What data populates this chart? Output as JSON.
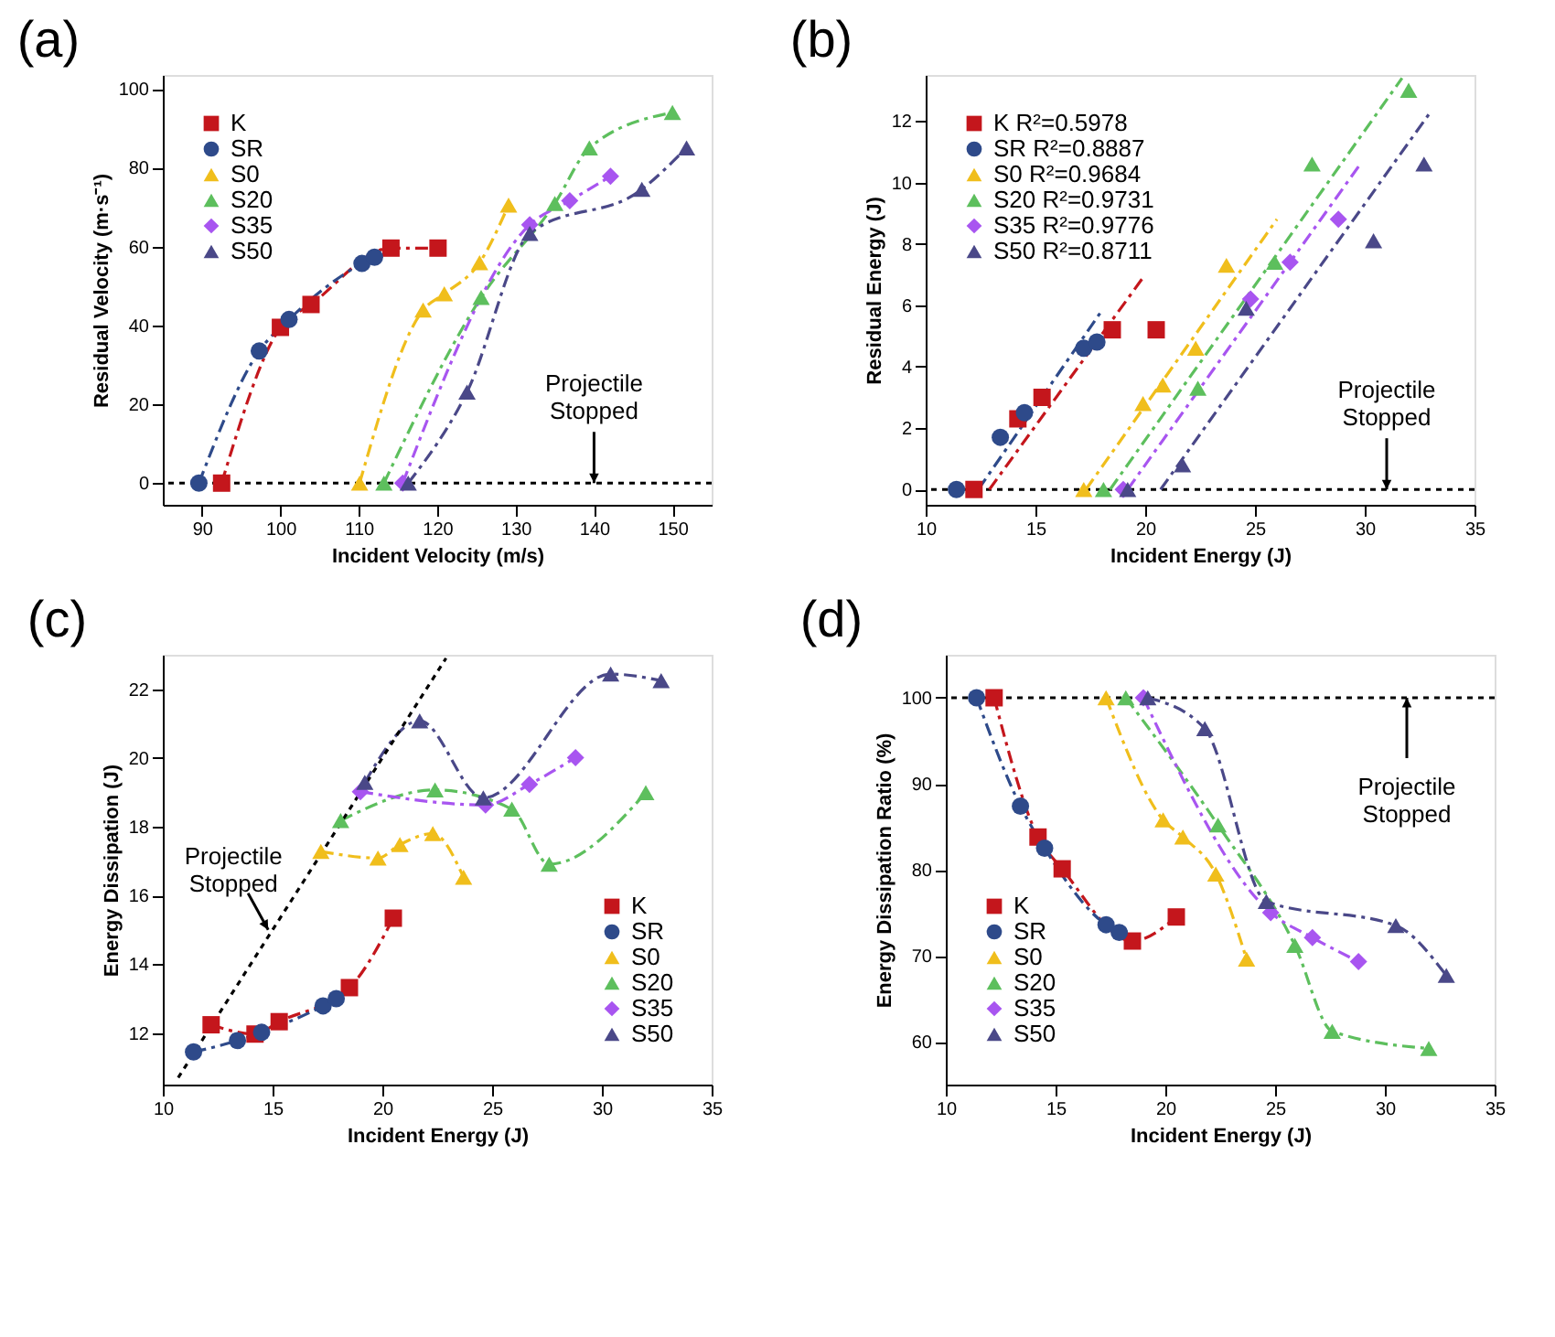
{
  "chart_data": [
    {
      "type": "line",
      "title": "(a)",
      "xlabel": "Incident Velocity (m/s)",
      "ylabel": "Residual Velocity (m·s⁻¹)",
      "xlim": [
        85,
        155
      ],
      "ylim": [
        -5.5,
        103.5
      ],
      "xticks": [
        90,
        100,
        110,
        120,
        130,
        140,
        150
      ],
      "yticks": [
        0,
        20,
        40,
        60,
        80,
        100
      ],
      "grid": false,
      "legend": "top left",
      "line_style": "dashed",
      "series": [
        {
          "name": "K",
          "color": "#c4161c",
          "marker": "square",
          "x": [
            92.5,
            100,
            103.9,
            114.1,
            120.1
          ],
          "values": [
            0,
            39.5,
            45.3,
            59.6,
            59.6
          ]
        },
        {
          "name": "SR",
          "color": "#2e4a8a",
          "marker": "circle",
          "x": [
            89.6,
            97.3,
            101.1,
            110.4,
            112
          ],
          "values": [
            0,
            33.5,
            41.5,
            55.7,
            57.3
          ]
        },
        {
          "name": "S0",
          "color": "#f0be1c",
          "marker": "triangle",
          "x": [
            110.1,
            118.2,
            120.9,
            125.4,
            129.1
          ],
          "values": [
            0,
            43.9,
            48,
            55.9,
            70.5
          ]
        },
        {
          "name": "S20",
          "color": "#5dbf5d",
          "marker": "triangle",
          "x": [
            113.2,
            125.6,
            135,
            139.4,
            150
          ],
          "values": [
            0,
            47.1,
            70.9,
            85,
            94
          ]
        },
        {
          "name": "S35",
          "color": "#a855f0",
          "marker": "diamond",
          "x": [
            115.6,
            131.8,
            136.9,
            142.1
          ],
          "values": [
            0,
            65.5,
            71.6,
            77.8
          ]
        },
        {
          "name": "S50",
          "color": "#4a4888",
          "marker": "triangle",
          "x": [
            116.3,
            123.8,
            131.8,
            146.1,
            151.8
          ],
          "values": [
            0,
            23.1,
            63.3,
            74.5,
            85
          ]
        }
      ],
      "ref_lines": [
        {
          "axis": "y",
          "value": 0,
          "color": "#000000",
          "line_style": "dotted"
        }
      ],
      "annotations": [
        {
          "text": "Projectile Stopped",
          "x": 140,
          "y": 0
        }
      ]
    },
    {
      "type": "scatter",
      "title": "(b)",
      "xlabel": "Incident Energy (J)",
      "ylabel": "Residual Energy (J)",
      "xlim": [
        10,
        35
      ],
      "ylim": [
        -0.5,
        13.5
      ],
      "xticks": [
        10,
        15,
        20,
        25,
        30,
        35
      ],
      "yticks": [
        0,
        2,
        4,
        6,
        8,
        10,
        12
      ],
      "grid": false,
      "legend": "top left",
      "series": [
        {
          "name": "K R²=0.5978",
          "type": "scatter",
          "color": "#c4161c",
          "marker": "square",
          "x": [
            12.2,
            14.2,
            15.3,
            18.5,
            20.5
          ],
          "values": [
            0,
            2.3,
            3.0,
            5.2,
            5.2
          ]
        },
        {
          "name": "SR R²=0.8887",
          "type": "scatter",
          "color": "#2e4a8a",
          "marker": "circle",
          "x": [
            11.4,
            13.4,
            14.5,
            17.2,
            17.8
          ],
          "values": [
            0,
            1.7,
            2.5,
            4.6,
            4.8
          ]
        },
        {
          "name": "S0 R²=0.9684",
          "type": "scatter",
          "color": "#f0be1c",
          "marker": "triangle",
          "x": [
            17.2,
            19.9,
            20.8,
            22.3,
            23.7
          ],
          "values": [
            0,
            2.8,
            3.4,
            4.6,
            7.3
          ]
        },
        {
          "name": "S20 R²=0.9731",
          "type": "scatter",
          "color": "#5dbf5d",
          "marker": "triangle",
          "x": [
            18.1,
            22.4,
            25.9,
            27.6,
            32.0
          ],
          "values": [
            0,
            3.3,
            7.4,
            10.6,
            13.0
          ]
        },
        {
          "name": "S35 R²=0.9776",
          "type": "scatter",
          "color": "#a855f0",
          "marker": "diamond",
          "x": [
            19.0,
            24.8,
            26.6,
            28.8
          ],
          "values": [
            0,
            6.2,
            7.4,
            8.8
          ]
        },
        {
          "name": "S50 R²=0.8711",
          "type": "scatter",
          "color": "#4a4888",
          "marker": "triangle",
          "x": [
            19.2,
            21.7,
            24.6,
            30.4,
            32.7
          ],
          "values": [
            0,
            0.8,
            5.9,
            8.1,
            10.6
          ]
        },
        {
          "type": "line",
          "color": "#c4161c",
          "line_style": "dashed",
          "x": [
            12.9,
            19.9
          ],
          "values": [
            0,
            6.9
          ]
        },
        {
          "type": "line",
          "color": "#2e4a8a",
          "line_style": "dashed",
          "x": [
            12.4,
            18.0
          ],
          "values": [
            0,
            5.8
          ]
        },
        {
          "type": "line",
          "color": "#f0be1c",
          "line_style": "dashed",
          "x": [
            17.3,
            26.0
          ],
          "values": [
            0,
            8.8
          ]
        },
        {
          "type": "line",
          "color": "#5dbf5d",
          "line_style": "dashed",
          "x": [
            18.4,
            31.7
          ],
          "values": [
            0,
            13.4
          ]
        },
        {
          "type": "line",
          "color": "#a855f0",
          "line_style": "dashed",
          "x": [
            19.2,
            29.8
          ],
          "values": [
            0,
            10.6
          ]
        },
        {
          "type": "line",
          "color": "#4a4888",
          "line_style": "dashed",
          "x": [
            20.7,
            33.0
          ],
          "values": [
            0,
            12.3
          ]
        }
      ],
      "ref_lines": [
        {
          "axis": "y",
          "value": 0,
          "color": "#000000",
          "line_style": "dotted"
        }
      ],
      "annotations": [
        {
          "text": "Projectile Stopped",
          "x": 31,
          "y": 0
        }
      ]
    },
    {
      "type": "line",
      "title": "(c)",
      "xlabel": "Incident Energy (J)",
      "ylabel": "Energy Dissipation (J)",
      "xlim": [
        10,
        35
      ],
      "ylim": [
        10.5,
        23
      ],
      "xticks": [
        10,
        15,
        20,
        25,
        30,
        35
      ],
      "yticks": [
        12,
        14,
        16,
        18,
        20,
        22
      ],
      "grid": false,
      "legend": "bottom right",
      "line_style": "dashed",
      "series": [
        {
          "name": "K",
          "color": "#c4161c",
          "marker": "square",
          "x": [
            12.2,
            14.2,
            15.3,
            18.5,
            20.5
          ],
          "values": [
            12.24,
            11.97,
            12.33,
            13.32,
            15.34
          ]
        },
        {
          "name": "SR",
          "color": "#2e4a8a",
          "marker": "circle",
          "x": [
            11.4,
            13.4,
            14.5,
            17.3,
            17.9
          ],
          "values": [
            11.45,
            11.78,
            12.02,
            12.79,
            13.0
          ]
        },
        {
          "name": "S0",
          "color": "#f0be1c",
          "marker": "triangle",
          "x": [
            17.2,
            19.8,
            20.8,
            22.3,
            23.7
          ],
          "values": [
            17.28,
            17.09,
            17.48,
            17.8,
            16.53
          ]
        },
        {
          "name": "S20",
          "color": "#5dbf5d",
          "marker": "triangle",
          "x": [
            18.1,
            22.4,
            25.9,
            27.6,
            32.0
          ],
          "values": [
            18.18,
            19.07,
            18.51,
            16.91,
            18.99
          ]
        },
        {
          "name": "S35",
          "color": "#a855f0",
          "marker": "diamond",
          "x": [
            19.0,
            24.7,
            26.7,
            28.8
          ],
          "values": [
            19.02,
            18.63,
            19.23,
            20.01
          ]
        },
        {
          "name": "S50",
          "color": "#4a4888",
          "marker": "triangle",
          "x": [
            19.2,
            21.7,
            24.6,
            30.4,
            32.7
          ],
          "values": [
            19.29,
            21.08,
            18.84,
            22.44,
            22.25
          ]
        },
        {
          "type": "line",
          "color": "#000000",
          "marker": "none",
          "line_style": "dotted",
          "x": [
            10.7,
            22.9
          ],
          "values": [
            10.7,
            22.9
          ]
        }
      ],
      "annotations": [
        {
          "text": "Projectile Stopped",
          "x": 14.8,
          "y": 15.0
        }
      ]
    },
    {
      "type": "line",
      "title": "(d)",
      "xlabel": "Incident Energy (J)",
      "ylabel": "Energy Dissipation Ratio (%)",
      "xlim": [
        10,
        35
      ],
      "ylim": [
        55,
        105
      ],
      "xticks": [
        10,
        15,
        20,
        25,
        30,
        35
      ],
      "yticks": [
        60,
        70,
        80,
        90,
        100
      ],
      "grid": false,
      "legend": "bottom left",
      "line_style": "dashed",
      "series": [
        {
          "name": "K",
          "color": "#c4161c",
          "marker": "square",
          "x": [
            12.2,
            14.2,
            15.3,
            18.5,
            20.5
          ],
          "values": [
            100,
            83.8,
            80.1,
            71.7,
            74.5
          ]
        },
        {
          "name": "SR",
          "color": "#2e4a8a",
          "marker": "circle",
          "x": [
            11.4,
            13.4,
            14.5,
            17.3,
            17.9
          ],
          "values": [
            100,
            87.4,
            82.5,
            73.6,
            72.7
          ]
        },
        {
          "name": "S0",
          "color": "#f0be1c",
          "marker": "triangle",
          "x": [
            17.3,
            19.9,
            20.8,
            22.3,
            23.7
          ],
          "values": [
            100,
            85.8,
            83.8,
            79.5,
            69.6
          ]
        },
        {
          "name": "S20",
          "color": "#5dbf5d",
          "marker": "triangle",
          "x": [
            18.2,
            22.4,
            25.9,
            27.6,
            32.0
          ],
          "values": [
            100,
            85.2,
            71.2,
            61.2,
            59.2
          ]
        },
        {
          "name": "S35",
          "color": "#a855f0",
          "marker": "diamond",
          "x": [
            19.0,
            24.8,
            26.7,
            28.8
          ],
          "values": [
            100,
            75.0,
            72.1,
            69.3
          ]
        },
        {
          "name": "S50",
          "color": "#4a4888",
          "marker": "triangle",
          "x": [
            19.2,
            21.8,
            24.6,
            30.5,
            32.8
          ],
          "values": [
            100,
            96.4,
            76.3,
            73.5,
            67.7
          ]
        }
      ],
      "ref_lines": [
        {
          "axis": "y",
          "value": 100,
          "color": "#000000",
          "line_style": "dotted"
        }
      ],
      "annotations": [
        {
          "text": "Projectile Stopped",
          "x": 31,
          "y": 100
        }
      ]
    }
  ]
}
